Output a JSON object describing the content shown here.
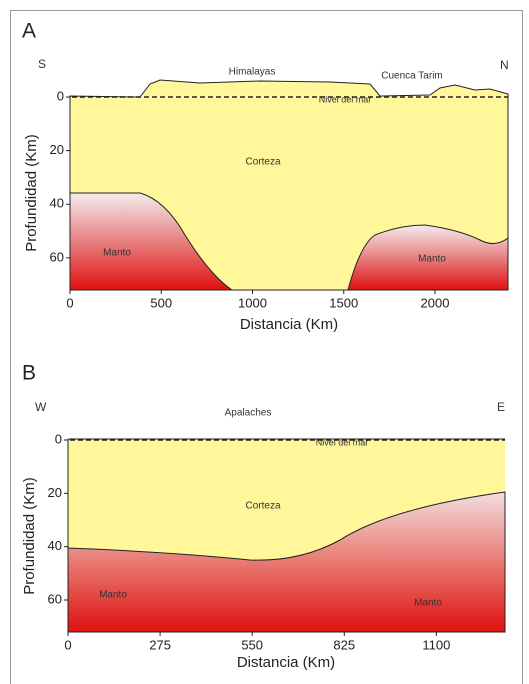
{
  "panels": [
    {
      "label": "A",
      "left": "S",
      "right": "N",
      "annotations": [
        "Himalayas",
        "Cuenca Tarim",
        "Nivel del mar",
        "Corteza",
        "Manto",
        "Manto"
      ],
      "y_axis_label": "Profundidad (Km)",
      "x_axis_label": "Distancia (Km)",
      "xlim": [
        0,
        2400
      ],
      "ylim": [
        0,
        72
      ],
      "xticks": [
        0,
        500,
        1000,
        1500,
        2000
      ],
      "yticks": [
        0,
        20,
        40,
        60
      ]
    },
    {
      "label": "B",
      "left": "W",
      "right": "E",
      "annotations": [
        "Apalaches",
        "Nivel del mar",
        "Corteza",
        "Manto",
        "Manto"
      ],
      "y_axis_label": "Profundidad (Km)",
      "x_axis_label": "Distancia (Km)",
      "xlim": [
        0,
        1305
      ],
      "ylim": [
        0,
        72
      ],
      "xticks": [
        0,
        275,
        550,
        825,
        1100
      ],
      "yticks": [
        0,
        20,
        40,
        60
      ]
    }
  ]
}
